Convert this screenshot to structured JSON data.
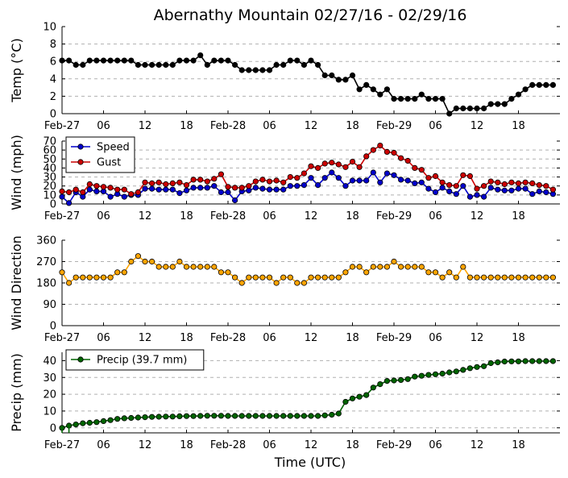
{
  "chart_data": [
    {
      "type": "line",
      "title": "Abernathy Mountain 02/27/16 - 02/29/16",
      "xlabel": "",
      "ylabel": "Temp (°C)",
      "yticks": [
        0,
        2,
        4,
        6,
        8,
        10
      ],
      "ylim": [
        0,
        10
      ],
      "xlim_hours": [
        0,
        72
      ],
      "xtick_labels": [
        "Feb-27",
        "06",
        "12",
        "18",
        "Feb-28",
        "06",
        "12",
        "18",
        "Feb-29",
        "06",
        "12",
        "18"
      ],
      "legend": null,
      "series": [
        {
          "name": "Temp",
          "color": "#000000",
          "values": [
            6.1,
            6.1,
            5.6,
            5.6,
            6.1,
            6.1,
            6.1,
            6.1,
            6.1,
            6.1,
            6.1,
            5.6,
            5.6,
            5.6,
            5.6,
            5.6,
            5.6,
            6.1,
            6.1,
            6.1,
            6.7,
            5.6,
            6.1,
            6.1,
            6.1,
            5.6,
            5.0,
            5.0,
            5.0,
            5.0,
            5.0,
            5.6,
            5.6,
            6.1,
            6.1,
            5.6,
            6.1,
            5.6,
            4.4,
            4.4,
            3.9,
            3.9,
            4.4,
            2.8,
            3.3,
            2.8,
            2.2,
            2.8,
            1.7,
            1.7,
            1.7,
            1.7,
            2.2,
            1.7,
            1.7,
            1.7,
            0.0,
            0.6,
            0.6,
            0.6,
            0.6,
            0.6,
            1.1,
            1.1,
            1.1,
            1.7,
            2.2,
            2.8,
            3.3,
            3.3,
            3.3,
            3.3
          ]
        }
      ]
    },
    {
      "type": "line",
      "title": "",
      "xlabel": "",
      "ylabel": "Wind (mph)",
      "yticks": [
        0,
        10,
        20,
        30,
        40,
        50,
        60,
        70
      ],
      "ylim": [
        0,
        70
      ],
      "xlim_hours": [
        0,
        72
      ],
      "xtick_labels": [
        "Feb-27",
        "06",
        "12",
        "18",
        "Feb-28",
        "06",
        "12",
        "18",
        "Feb-29",
        "06",
        "12",
        "18"
      ],
      "legend": "top-left",
      "series": [
        {
          "name": "Speed",
          "color": "#0000cc",
          "values": [
            8,
            1,
            13,
            8,
            16,
            14,
            14,
            8,
            11,
            8,
            10,
            10,
            17,
            17,
            16,
            16,
            16,
            12,
            15,
            18,
            18,
            18,
            20,
            13,
            13,
            4,
            14,
            15,
            18,
            17,
            16,
            16,
            16,
            20,
            20,
            21,
            29,
            21,
            29,
            35,
            29,
            20,
            26,
            26,
            26,
            35,
            24,
            34,
            32,
            27,
            26,
            23,
            24,
            17,
            13,
            18,
            14,
            11,
            20,
            8,
            10,
            8,
            18,
            16,
            15,
            15,
            17,
            17,
            11,
            14,
            13,
            11
          ]
        },
        {
          "name": "Gust",
          "color": "#cc0000",
          "values": [
            14,
            13,
            16,
            13,
            22,
            20,
            19,
            18,
            16,
            16,
            11,
            13,
            24,
            23,
            24,
            22,
            23,
            24,
            21,
            27,
            27,
            25,
            28,
            33,
            19,
            18,
            18,
            20,
            25,
            27,
            25,
            26,
            24,
            30,
            29,
            34,
            42,
            40,
            45,
            46,
            44,
            41,
            47,
            41,
            53,
            60,
            65,
            58,
            57,
            51,
            48,
            40,
            38,
            29,
            31,
            24,
            21,
            20,
            32,
            31,
            17,
            20,
            25,
            24,
            22,
            24,
            23,
            24,
            23,
            21,
            20,
            16
          ]
        }
      ]
    },
    {
      "type": "line",
      "title": "",
      "xlabel": "",
      "ylabel": "Wind Direction",
      "yticks": [
        0,
        90,
        180,
        270,
        360
      ],
      "ylim": [
        0,
        360
      ],
      "xlim_hours": [
        0,
        72
      ],
      "xtick_labels": [
        "Feb-27",
        "06",
        "12",
        "18",
        "Feb-28",
        "06",
        "12",
        "18",
        "Feb-29",
        "06",
        "12",
        "18"
      ],
      "legend": null,
      "series": [
        {
          "name": "Wind Direction",
          "color": "#ffa500",
          "values": [
            225,
            180,
            203,
            203,
            203,
            203,
            203,
            203,
            225,
            225,
            270,
            293,
            270,
            270,
            248,
            248,
            248,
            270,
            248,
            248,
            248,
            248,
            248,
            225,
            225,
            203,
            180,
            203,
            203,
            203,
            203,
            180,
            203,
            203,
            180,
            180,
            203,
            203,
            203,
            203,
            203,
            225,
            248,
            248,
            225,
            248,
            248,
            248,
            270,
            248,
            248,
            248,
            248,
            225,
            225,
            203,
            225,
            203,
            248,
            203,
            203,
            203,
            203,
            203,
            203,
            203,
            203,
            203,
            203,
            203,
            203,
            203
          ]
        }
      ]
    },
    {
      "type": "line",
      "title": "",
      "xlabel": "Time (UTC)",
      "ylabel": "Precip (mm)",
      "yticks": [
        0,
        10,
        20,
        30,
        40
      ],
      "ylim": [
        -3,
        45
      ],
      "xlim_hours": [
        0,
        72
      ],
      "xtick_labels": [
        "Feb-27",
        "06",
        "12",
        "18",
        "Feb-28",
        "06",
        "12",
        "18",
        "Feb-29",
        "06",
        "12",
        "18"
      ],
      "legend": "top-left",
      "series": [
        {
          "name": "Precip (39.7 mm)",
          "color": "#006400",
          "values": [
            0,
            1.3,
            2.0,
            2.7,
            3.0,
            3.4,
            4.0,
            4.6,
            5.3,
            5.7,
            5.9,
            6.1,
            6.3,
            6.5,
            6.6,
            6.7,
            6.7,
            6.9,
            7.0,
            7.0,
            7.1,
            7.2,
            7.2,
            7.2,
            7.1,
            7.1,
            7.1,
            7.1,
            7.1,
            7.1,
            7.1,
            7.1,
            7.1,
            7.1,
            7.1,
            7.1,
            7.1,
            7.1,
            7.4,
            7.8,
            8.5,
            15.5,
            17.5,
            18.5,
            19.5,
            24.0,
            26.0,
            27.9,
            28.2,
            28.5,
            29.0,
            30.5,
            31.0,
            31.5,
            31.9,
            32.3,
            33.0,
            33.6,
            34.5,
            35.5,
            36.2,
            36.7,
            38.5,
            39.0,
            39.5,
            39.6,
            39.6,
            39.7,
            39.7,
            39.7,
            39.7,
            39.7
          ]
        }
      ]
    }
  ]
}
